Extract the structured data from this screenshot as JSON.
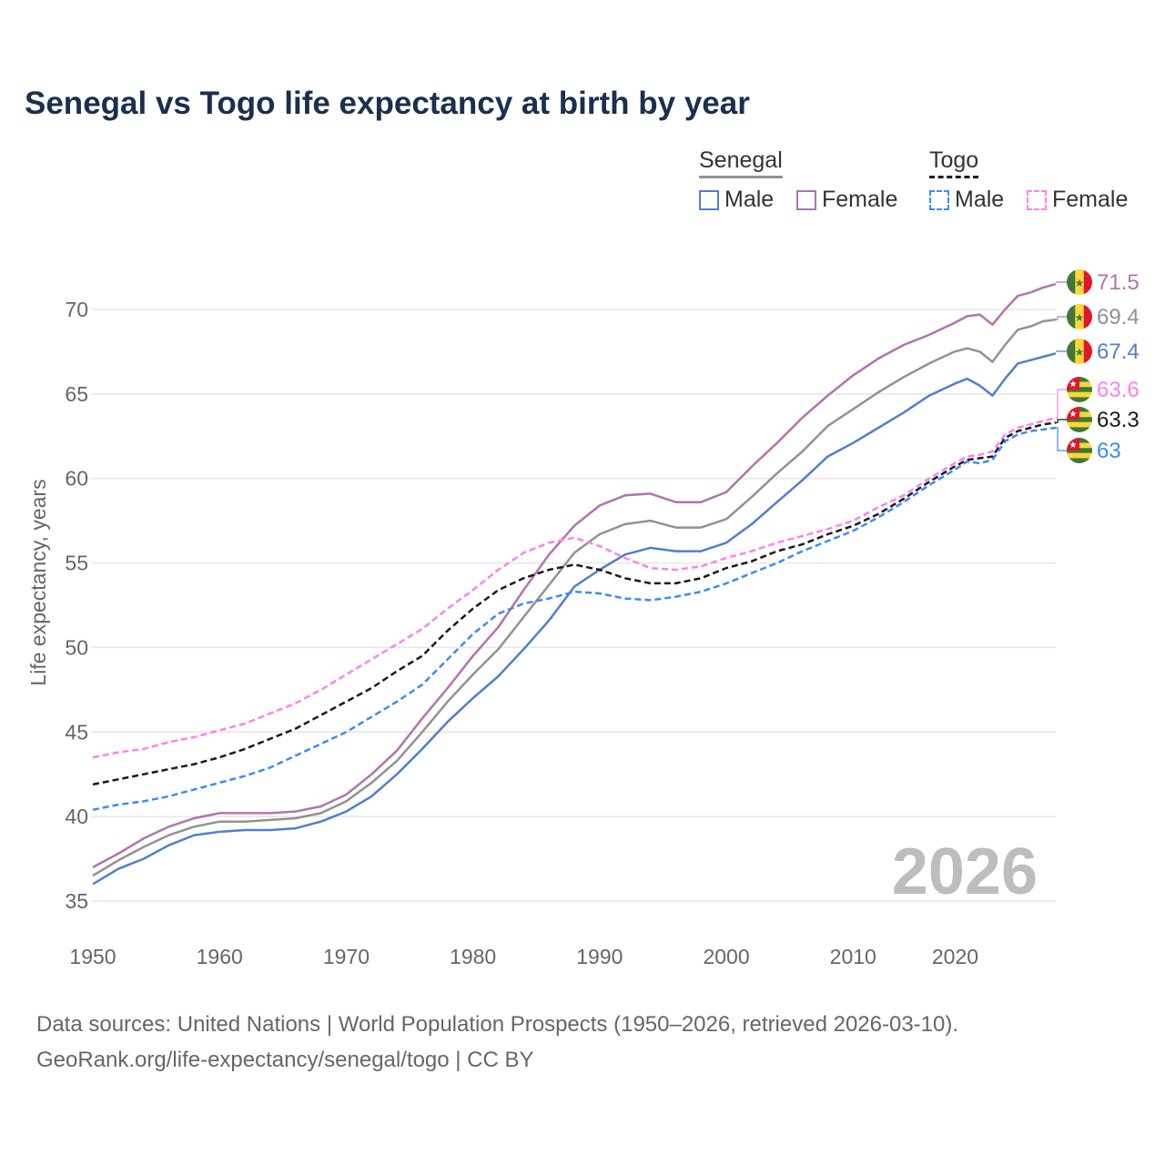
{
  "chart_data": {
    "type": "line",
    "title": "Senegal vs Togo life expectancy at birth by year",
    "xlabel": "",
    "ylabel": "Life expectancy, years",
    "xlim": [
      1950,
      2026
    ],
    "ylim": [
      35,
      72
    ],
    "x_ticks": [
      1950,
      1960,
      1970,
      1980,
      1990,
      2000,
      2010,
      2020
    ],
    "y_ticks": [
      35,
      40,
      45,
      50,
      55,
      60,
      65,
      70
    ],
    "grid": true,
    "year_watermark": "2026",
    "legend": {
      "placement": "top-right",
      "groups": [
        {
          "title": "Senegal",
          "items": [
            "Male",
            "Female"
          ]
        },
        {
          "title": "Togo",
          "items": [
            "Male",
            "Female"
          ]
        }
      ]
    },
    "x": [
      1950,
      1952,
      1954,
      1956,
      1958,
      1960,
      1962,
      1964,
      1966,
      1968,
      1970,
      1972,
      1974,
      1976,
      1978,
      1980,
      1982,
      1984,
      1986,
      1988,
      1990,
      1992,
      1994,
      1996,
      1998,
      2000,
      2002,
      2004,
      2006,
      2008,
      2010,
      2012,
      2014,
      2016,
      2018,
      2019,
      2020,
      2021,
      2022,
      2023,
      2024,
      2025,
      2026
    ],
    "series": [
      {
        "name": "Senegal Female",
        "country": "senegal",
        "color": "#b173b1",
        "dash": false,
        "end_label": "71.5",
        "values": [
          37.0,
          37.8,
          38.7,
          39.4,
          39.9,
          40.2,
          40.2,
          40.2,
          40.3,
          40.6,
          41.3,
          42.5,
          43.9,
          45.8,
          47.6,
          49.5,
          51.2,
          53.4,
          55.5,
          57.2,
          58.4,
          59.0,
          59.1,
          58.6,
          58.6,
          59.2,
          60.7,
          62.1,
          63.6,
          64.9,
          66.1,
          67.1,
          67.9,
          68.5,
          69.2,
          69.6,
          69.7,
          69.1,
          70.0,
          70.8,
          71.0,
          71.3,
          71.5
        ]
      },
      {
        "name": "Senegal",
        "country": "senegal",
        "color": "#929292",
        "dash": false,
        "end_label": "69.4",
        "values": [
          36.5,
          37.4,
          38.2,
          38.9,
          39.4,
          39.7,
          39.7,
          39.8,
          39.9,
          40.2,
          40.9,
          42.0,
          43.3,
          45.0,
          46.8,
          48.4,
          49.9,
          51.8,
          53.7,
          55.6,
          56.7,
          57.3,
          57.5,
          57.1,
          57.1,
          57.6,
          58.9,
          60.3,
          61.6,
          63.1,
          64.1,
          65.1,
          66.0,
          66.8,
          67.5,
          67.7,
          67.5,
          66.9,
          67.9,
          68.8,
          69.0,
          69.3,
          69.4
        ]
      },
      {
        "name": "Senegal Male",
        "country": "senegal",
        "color": "#4f7fcf",
        "dash": false,
        "end_label": "67.4",
        "values": [
          36.0,
          36.9,
          37.5,
          38.3,
          38.9,
          39.1,
          39.2,
          39.2,
          39.3,
          39.7,
          40.3,
          41.2,
          42.5,
          44.0,
          45.6,
          47.0,
          48.3,
          49.9,
          51.6,
          53.6,
          54.6,
          55.5,
          55.9,
          55.7,
          55.7,
          56.2,
          57.3,
          58.6,
          59.9,
          61.3,
          62.1,
          63.0,
          63.9,
          64.9,
          65.6,
          65.9,
          65.5,
          64.9,
          65.9,
          66.8,
          67.0,
          67.2,
          67.4
        ]
      },
      {
        "name": "Togo Female",
        "country": "togo",
        "color": "#ff80f0",
        "dash": true,
        "end_label": "63.6",
        "values": [
          43.5,
          43.8,
          44.0,
          44.4,
          44.7,
          45.1,
          45.5,
          46.1,
          46.7,
          47.5,
          48.4,
          49.3,
          50.2,
          51.1,
          52.3,
          53.4,
          54.6,
          55.6,
          56.2,
          56.5,
          56.0,
          55.3,
          54.7,
          54.6,
          54.8,
          55.3,
          55.7,
          56.2,
          56.6,
          57.0,
          57.5,
          58.3,
          59.0,
          60.0,
          60.9,
          61.3,
          61.4,
          61.6,
          62.6,
          63.0,
          63.2,
          63.4,
          63.6
        ]
      },
      {
        "name": "Togo",
        "country": "togo",
        "color": "#1a1a1a",
        "dash": true,
        "end_label": "63.3",
        "values": [
          41.9,
          42.2,
          42.5,
          42.8,
          43.1,
          43.5,
          44.0,
          44.6,
          45.2,
          46.0,
          46.8,
          47.6,
          48.6,
          49.5,
          51.0,
          52.3,
          53.4,
          54.1,
          54.6,
          54.9,
          54.6,
          54.1,
          53.8,
          53.8,
          54.1,
          54.7,
          55.1,
          55.7,
          56.1,
          56.7,
          57.2,
          57.9,
          58.8,
          59.8,
          60.7,
          61.1,
          61.2,
          61.3,
          62.4,
          62.8,
          63.0,
          63.2,
          63.3
        ]
      },
      {
        "name": "Togo Male",
        "country": "togo",
        "color": "#3d8bf5",
        "dash": true,
        "end_label": "63",
        "values": [
          40.4,
          40.7,
          40.9,
          41.2,
          41.6,
          42.0,
          42.4,
          42.9,
          43.6,
          44.3,
          45.0,
          45.9,
          46.8,
          47.8,
          49.3,
          50.8,
          52.0,
          52.6,
          52.9,
          53.3,
          53.2,
          52.9,
          52.8,
          53.0,
          53.3,
          53.8,
          54.4,
          55.0,
          55.7,
          56.3,
          56.9,
          57.7,
          58.6,
          59.6,
          60.5,
          61.0,
          60.9,
          61.1,
          62.2,
          62.6,
          62.8,
          62.9,
          63.0
        ]
      }
    ]
  },
  "legend": {
    "senegal_title": "Senegal",
    "togo_title": "Togo",
    "male": "Male",
    "female": "Female",
    "colors": {
      "senegal_total": "#929292",
      "senegal_male": "#4f7fcf",
      "senegal_female": "#b173b1",
      "togo_total": "#1a1a1a",
      "togo_male": "#3d8bf5",
      "togo_female": "#ff80f0"
    }
  },
  "source": {
    "line1": "Data sources: United Nations | World Population Prospects (1950–2026, retrieved 2026-03-10).",
    "line2": "GeoRank.org/life-expectancy/senegal/togo | CC BY"
  }
}
